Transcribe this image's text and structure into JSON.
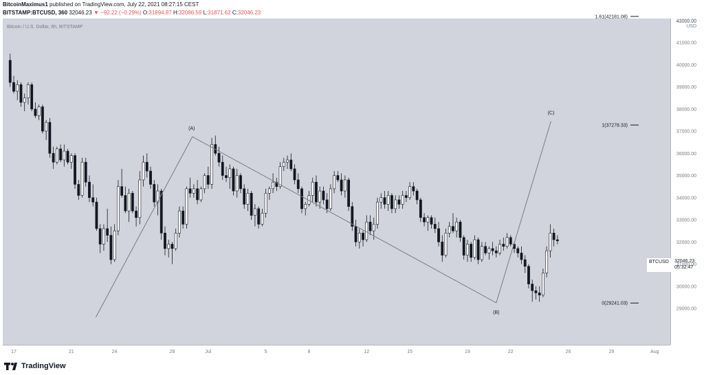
{
  "header": {
    "author": "BitcoinMaximus1",
    "published": "published on TradingView.com, July 22, 2021 08:27:15 CEST",
    "symbol_line": "BITSTAMP:BTCUSD, 360",
    "last": "32046.23",
    "change": "▼ −92.22 (−0.29%)",
    "o_label": "O:",
    "o_value": "31894.87",
    "h_label": "H:",
    "h_value": "32086.59",
    "l_label": "L:",
    "l_value": "31871.62",
    "c_label": "C:",
    "c_value": "32046.23"
  },
  "chart_title": "Bitcoin / U.S. Dollar, 6h, BITSTAMP",
  "last_marker": {
    "symbol": "BTCUSD",
    "price": "32046.23",
    "timer": "05:32:47"
  },
  "footer": {
    "logo": "TradingView"
  },
  "colors": {
    "background": "#d1d4dc",
    "candle_up": "#ffffff",
    "candle_down": "#131722",
    "wave_line": "#787b86",
    "down_red": "#ef5350"
  },
  "chart_data": {
    "type": "candlestick",
    "title": "Bitcoin / U.S. Dollar, 6h, BITSTAMP",
    "ylabel": "USD",
    "ylim": [
      28500,
      43300
    ],
    "xlim": [
      16.6,
      32.2
    ],
    "y_ticks": [
      {
        "v": 29000,
        "label": "29000.00"
      },
      {
        "v": 30000,
        "label": "30000.00"
      },
      {
        "v": 31000,
        "label": "31000.00"
      },
      {
        "v": 32000,
        "label": "32000.00"
      },
      {
        "v": 33000,
        "label": "33000.00"
      },
      {
        "v": 34000,
        "label": "34000.00"
      },
      {
        "v": 35000,
        "label": "35000.00"
      },
      {
        "v": 36000,
        "label": "36000.00"
      },
      {
        "v": 37000,
        "label": "37000.00"
      },
      {
        "v": 38000,
        "label": "38000.00"
      },
      {
        "v": 39000,
        "label": "39000.00"
      },
      {
        "v": 40000,
        "label": "40000.00"
      },
      {
        "v": 41000,
        "label": "41000.00"
      },
      {
        "v": 42000,
        "label": "42000.00"
      }
    ],
    "top_tick": "43000.00",
    "x_ticks": [
      {
        "d": 17,
        "label": "17"
      },
      {
        "d": 21,
        "label": "21"
      },
      {
        "d": 24,
        "label": "24"
      },
      {
        "d": 28,
        "label": "28"
      },
      {
        "d": 30.5,
        "label": "Jul"
      },
      {
        "d": 34.5,
        "label": "5"
      },
      {
        "d": 37.5,
        "label": "8"
      },
      {
        "d": 41.5,
        "label": "12"
      },
      {
        "d": 44.5,
        "label": "15"
      },
      {
        "d": 48.5,
        "label": "19"
      },
      {
        "d": 51.5,
        "label": "22"
      },
      {
        "d": 55.5,
        "label": "26"
      },
      {
        "d": 58.5,
        "label": "29"
      },
      {
        "d": 61.5,
        "label": "Aug"
      }
    ],
    "fib_levels": [
      {
        "label": "1.61(42181.08)",
        "value": 42181.08
      },
      {
        "label": "1(37278.33)",
        "value": 37278.33
      },
      {
        "label": "0(29241.03)",
        "value": 29241.03
      }
    ],
    "wave_points": [
      {
        "d": 22.7,
        "price": 28600,
        "label": ""
      },
      {
        "d": 29.4,
        "price": 36750,
        "label": "(A)"
      },
      {
        "d": 50.5,
        "price": 29250,
        "label": "(B)"
      },
      {
        "d": 54.3,
        "price": 37450,
        "label": "(C)"
      }
    ],
    "ohlc": [
      [
        40200,
        40500,
        39000,
        39200
      ],
      [
        39200,
        39500,
        38700,
        38800
      ],
      [
        38800,
        39300,
        38400,
        39100
      ],
      [
        39100,
        39200,
        38100,
        38300
      ],
      [
        38300,
        38700,
        37900,
        38500
      ],
      [
        38500,
        39200,
        38200,
        39100
      ],
      [
        39100,
        39200,
        37900,
        38000
      ],
      [
        38000,
        38300,
        37600,
        37700
      ],
      [
        37700,
        38200,
        37500,
        38100
      ],
      [
        38100,
        38200,
        36900,
        37000
      ],
      [
        37000,
        37500,
        36600,
        37400
      ],
      [
        37400,
        37600,
        35800,
        36000
      ],
      [
        36000,
        36300,
        35300,
        35600
      ],
      [
        35600,
        36300,
        35500,
        36200
      ],
      [
        36200,
        36400,
        35600,
        35700
      ],
      [
        35700,
        36400,
        35400,
        36100
      ],
      [
        36100,
        36200,
        35500,
        35600
      ],
      [
        35600,
        36000,
        35300,
        35900
      ],
      [
        35900,
        36000,
        34400,
        34600
      ],
      [
        34600,
        34800,
        33900,
        34100
      ],
      [
        34100,
        35800,
        34000,
        35600
      ],
      [
        35600,
        35800,
        34500,
        34700
      ],
      [
        34700,
        35000,
        33800,
        34000
      ],
      [
        34000,
        34600,
        33600,
        33800
      ],
      [
        33800,
        34000,
        32500,
        32600
      ],
      [
        32600,
        32800,
        31500,
        31900
      ],
      [
        31900,
        32800,
        31600,
        32600
      ],
      [
        32600,
        33500,
        32000,
        32300
      ],
      [
        32300,
        32700,
        31000,
        31200
      ],
      [
        31200,
        32800,
        31100,
        32500
      ],
      [
        32500,
        34800,
        32300,
        34500
      ],
      [
        34500,
        35300,
        34000,
        34100
      ],
      [
        34100,
        34500,
        33300,
        33400
      ],
      [
        33400,
        34400,
        32900,
        34200
      ],
      [
        34200,
        34300,
        33300,
        33400
      ],
      [
        33400,
        33600,
        32700,
        33100
      ],
      [
        33100,
        35200,
        32800,
        34800
      ],
      [
        34800,
        35900,
        34500,
        35600
      ],
      [
        35600,
        36000,
        34900,
        35200
      ],
      [
        35200,
        35400,
        34400,
        34600
      ],
      [
        34600,
        34800,
        33600,
        33800
      ],
      [
        33800,
        34600,
        33200,
        34300
      ],
      [
        34300,
        34400,
        32100,
        32400
      ],
      [
        32400,
        32700,
        31400,
        31700
      ],
      [
        31700,
        32100,
        31300,
        31900
      ],
      [
        31900,
        32000,
        31000,
        31700
      ],
      [
        31700,
        32600,
        31600,
        32400
      ],
      [
        32400,
        33600,
        32200,
        33400
      ],
      [
        33400,
        33600,
        32600,
        32800
      ],
      [
        32800,
        34500,
        32600,
        34400
      ],
      [
        34400,
        34900,
        34000,
        34200
      ],
      [
        34200,
        34600,
        34000,
        34400
      ],
      [
        34400,
        34800,
        33700,
        33900
      ],
      [
        33900,
        34500,
        33800,
        34400
      ],
      [
        34400,
        35100,
        34200,
        35000
      ],
      [
        35000,
        35400,
        34400,
        34600
      ],
      [
        34600,
        36700,
        34400,
        36400
      ],
      [
        36400,
        36800,
        35900,
        36000
      ],
      [
        36000,
        36300,
        35400,
        35600
      ],
      [
        35600,
        35900,
        34800,
        35000
      ],
      [
        35000,
        35400,
        34700,
        34900
      ],
      [
        34900,
        35500,
        34400,
        35300
      ],
      [
        35300,
        35400,
        34100,
        34300
      ],
      [
        34300,
        35300,
        34000,
        35000
      ],
      [
        35000,
        35100,
        34200,
        34400
      ],
      [
        34400,
        34600,
        33500,
        33700
      ],
      [
        33700,
        34400,
        33400,
        34200
      ],
      [
        34200,
        34300,
        33000,
        33200
      ],
      [
        33200,
        33700,
        32700,
        33500
      ],
      [
        33500,
        33600,
        32600,
        32800
      ],
      [
        32800,
        33500,
        32700,
        33300
      ],
      [
        33300,
        34400,
        33100,
        34200
      ],
      [
        34200,
        34500,
        33900,
        34400
      ],
      [
        34400,
        35100,
        34200,
        34700
      ],
      [
        34700,
        34900,
        34300,
        34500
      ],
      [
        34500,
        35600,
        34400,
        35400
      ],
      [
        35400,
        35800,
        35200,
        35600
      ],
      [
        35600,
        35900,
        35300,
        35700
      ],
      [
        35700,
        36000,
        35200,
        35300
      ],
      [
        35300,
        35500,
        34600,
        34800
      ],
      [
        34800,
        35100,
        34200,
        34400
      ],
      [
        34400,
        34500,
        33300,
        33500
      ],
      [
        33500,
        33800,
        33200,
        33700
      ],
      [
        33700,
        34300,
        33600,
        34100
      ],
      [
        34100,
        34900,
        33800,
        34700
      ],
      [
        34700,
        35000,
        33600,
        33800
      ],
      [
        33800,
        34500,
        33500,
        34300
      ],
      [
        34300,
        34500,
        33700,
        33900
      ],
      [
        33900,
        34200,
        33300,
        33500
      ],
      [
        33500,
        34600,
        33400,
        34400
      ],
      [
        34400,
        35200,
        34200,
        35000
      ],
      [
        35000,
        35200,
        34700,
        34800
      ],
      [
        34800,
        35100,
        34100,
        34300
      ],
      [
        34300,
        35000,
        34000,
        34800
      ],
      [
        34800,
        34900,
        33400,
        33600
      ],
      [
        33600,
        33800,
        32500,
        32700
      ],
      [
        32700,
        33000,
        31800,
        32000
      ],
      [
        32000,
        32600,
        31700,
        32400
      ],
      [
        32400,
        32500,
        31800,
        32100
      ],
      [
        32100,
        33200,
        32000,
        32900
      ],
      [
        32900,
        33200,
        32300,
        32500
      ],
      [
        32500,
        33100,
        32100,
        32800
      ],
      [
        32800,
        34000,
        32600,
        33800
      ],
      [
        33800,
        34200,
        33500,
        34000
      ],
      [
        34000,
        34300,
        33500,
        33700
      ],
      [
        33700,
        34300,
        33400,
        34100
      ],
      [
        34100,
        34200,
        33300,
        33500
      ],
      [
        33500,
        34100,
        33300,
        33900
      ],
      [
        33900,
        34100,
        33500,
        33700
      ],
      [
        33700,
        34300,
        33500,
        34100
      ],
      [
        34100,
        34300,
        33800,
        34000
      ],
      [
        34000,
        34700,
        33900,
        34500
      ],
      [
        34500,
        34700,
        34100,
        34300
      ],
      [
        34300,
        34400,
        33700,
        33900
      ],
      [
        33900,
        34000,
        32900,
        33100
      ],
      [
        33100,
        33300,
        32700,
        32900
      ],
      [
        32900,
        33200,
        32500,
        33100
      ],
      [
        33100,
        33200,
        32600,
        32800
      ],
      [
        32800,
        33100,
        32400,
        32600
      ],
      [
        32600,
        32900,
        31800,
        32000
      ],
      [
        32000,
        32300,
        31100,
        31400
      ],
      [
        31400,
        32600,
        31300,
        32400
      ],
      [
        32400,
        32900,
        32200,
        32700
      ],
      [
        32700,
        33300,
        32400,
        32500
      ],
      [
        32500,
        33100,
        32200,
        32900
      ],
      [
        32900,
        33000,
        32000,
        32200
      ],
      [
        32200,
        32300,
        31200,
        31400
      ],
      [
        31400,
        32100,
        31100,
        31900
      ],
      [
        31900,
        32000,
        31100,
        31300
      ],
      [
        31300,
        32300,
        31200,
        32100
      ],
      [
        32100,
        32200,
        31000,
        31200
      ],
      [
        31200,
        32000,
        31100,
        31800
      ],
      [
        31800,
        32000,
        31400,
        31500
      ],
      [
        31500,
        31800,
        31200,
        31700
      ],
      [
        31700,
        32000,
        31400,
        31600
      ],
      [
        31600,
        31800,
        31300,
        31500
      ],
      [
        31500,
        32100,
        31400,
        31900
      ],
      [
        31900,
        32200,
        31600,
        31800
      ],
      [
        31800,
        32400,
        31700,
        32200
      ],
      [
        32200,
        32300,
        31800,
        31900
      ],
      [
        31900,
        32000,
        31500,
        31700
      ],
      [
        31700,
        31800,
        31300,
        31500
      ],
      [
        31500,
        31800,
        31000,
        31200
      ],
      [
        31200,
        31400,
        30600,
        30900
      ],
      [
        30900,
        31000,
        29900,
        30100
      ],
      [
        30100,
        30300,
        29300,
        29800
      ],
      [
        29800,
        30000,
        29400,
        29700
      ],
      [
        29700,
        30000,
        29300,
        29600
      ],
      [
        29600,
        30800,
        29500,
        30600
      ],
      [
        30600,
        31800,
        30400,
        31600
      ],
      [
        31600,
        32800,
        31300,
        32400
      ],
      [
        32400,
        32600,
        31800,
        32100
      ],
      [
        32100,
        32300,
        31900,
        32046
      ]
    ]
  }
}
